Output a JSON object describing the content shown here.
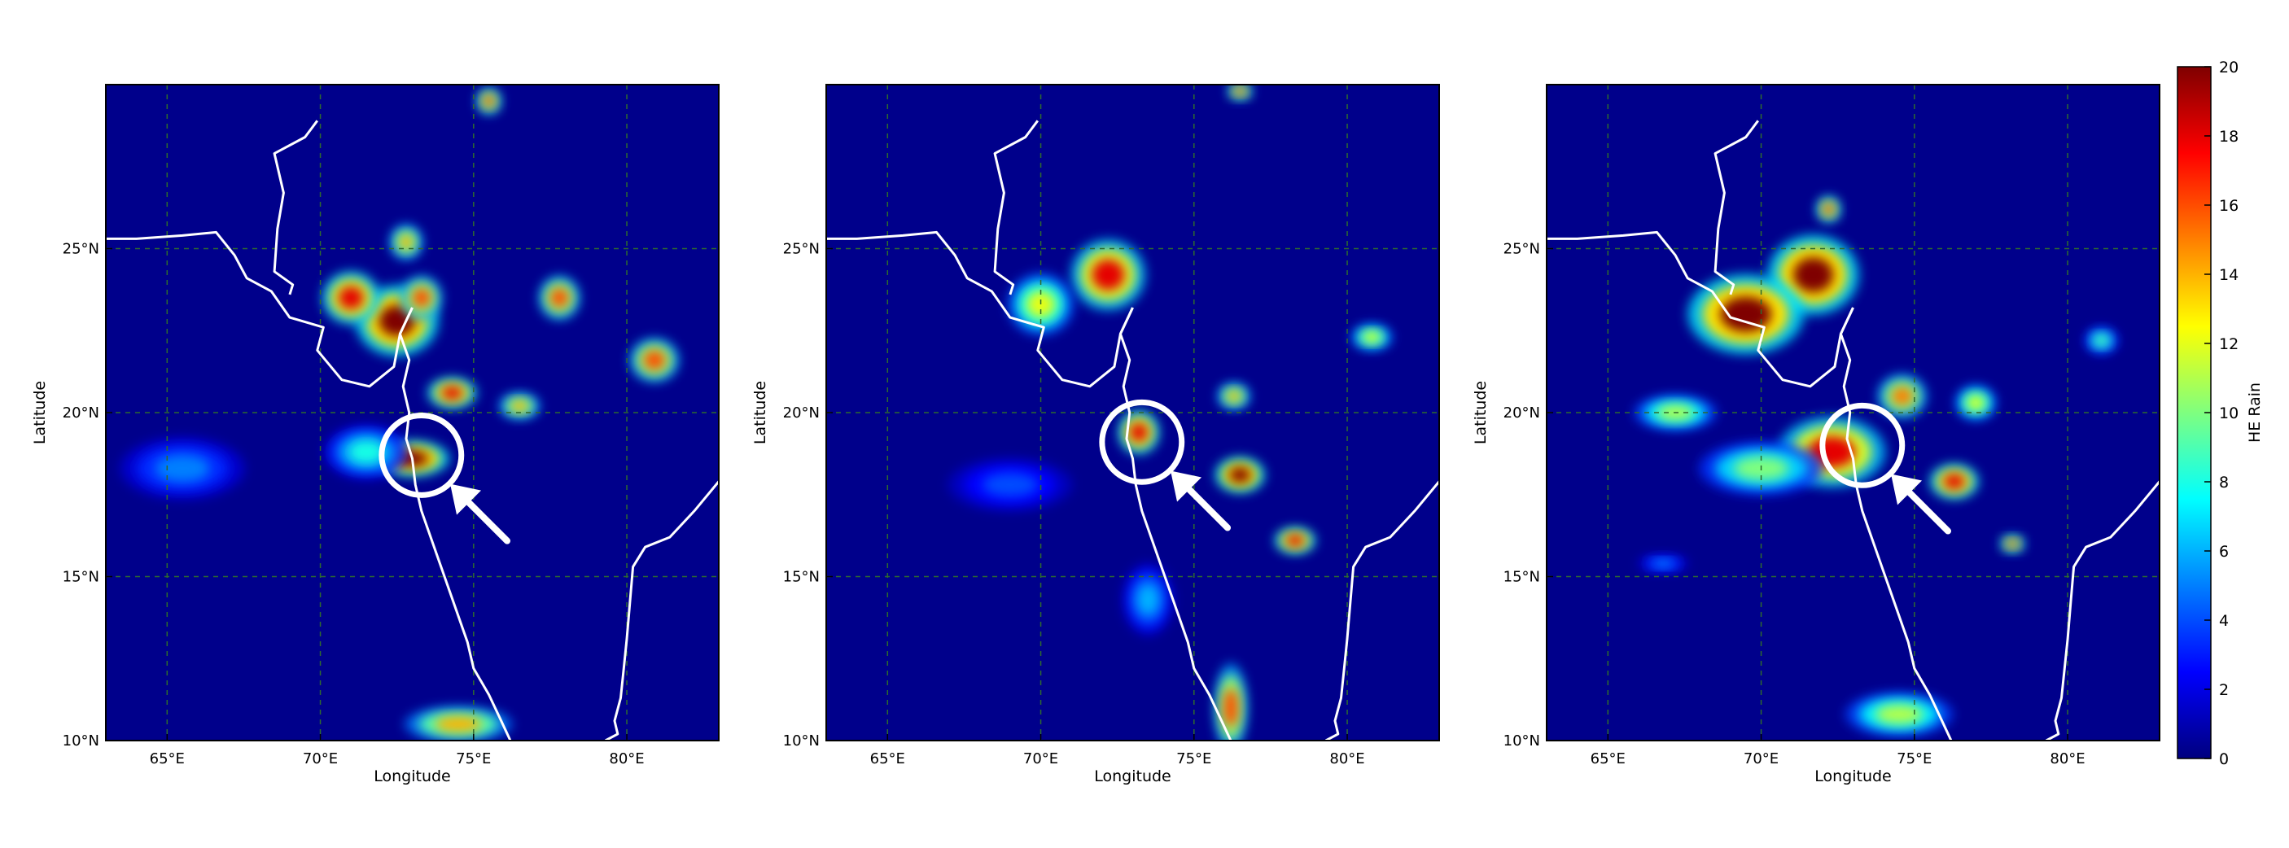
{
  "chart_data": [
    {
      "type": "heatmap",
      "xlabel": "Longitude",
      "ylabel": "Latitude",
      "xlim": [
        63,
        83
      ],
      "ylim": [
        10,
        30
      ],
      "xticks": [
        65,
        70,
        75,
        80
      ],
      "xtick_labels": [
        "65°E",
        "70°E",
        "75°E",
        "80°E"
      ],
      "yticks": [
        10,
        15,
        20,
        25
      ],
      "ytick_labels": [
        "10°N",
        "15°N",
        "20°N",
        "25°N"
      ],
      "grid": true,
      "annotation": {
        "shape": "circle-with-arrow",
        "center_lon": 73.3,
        "center_lat": 18.7,
        "radius_deg": 1.3
      },
      "rain_cells": [
        {
          "lon": 72.5,
          "lat": 22.8,
          "rx": 1.0,
          "ry": 0.8,
          "value": 20
        },
        {
          "lon": 71.0,
          "lat": 23.5,
          "rx": 0.7,
          "ry": 0.6,
          "value": 18
        },
        {
          "lon": 73.3,
          "lat": 23.5,
          "rx": 0.5,
          "ry": 0.5,
          "value": 16
        },
        {
          "lon": 73.0,
          "lat": 18.6,
          "rx": 0.9,
          "ry": 0.4,
          "value": 20
        },
        {
          "lon": 74.3,
          "lat": 20.6,
          "rx": 0.6,
          "ry": 0.35,
          "value": 18
        },
        {
          "lon": 77.8,
          "lat": 23.5,
          "rx": 0.5,
          "ry": 0.5,
          "value": 16
        },
        {
          "lon": 80.9,
          "lat": 21.6,
          "rx": 0.6,
          "ry": 0.5,
          "value": 16
        },
        {
          "lon": 76.5,
          "lat": 20.2,
          "rx": 0.5,
          "ry": 0.3,
          "value": 14
        },
        {
          "lon": 71.5,
          "lat": 18.8,
          "rx": 1.0,
          "ry": 0.6,
          "value": 8
        },
        {
          "lon": 65.5,
          "lat": 18.3,
          "rx": 1.5,
          "ry": 0.7,
          "value": 5
        },
        {
          "lon": 74.5,
          "lat": 10.5,
          "rx": 1.3,
          "ry": 0.4,
          "value": 14
        },
        {
          "lon": 72.8,
          "lat": 25.2,
          "rx": 0.4,
          "ry": 0.4,
          "value": 14
        },
        {
          "lon": 75.5,
          "lat": 29.5,
          "rx": 0.3,
          "ry": 0.3,
          "value": 16
        }
      ]
    },
    {
      "type": "heatmap",
      "xlabel": "Longitude",
      "ylabel": "Latitude",
      "xlim": [
        63,
        83
      ],
      "ylim": [
        10,
        30
      ],
      "xticks": [
        65,
        70,
        75,
        80
      ],
      "xtick_labels": [
        "65°E",
        "70°E",
        "75°E",
        "80°E"
      ],
      "yticks": [
        10,
        15,
        20,
        25
      ],
      "ytick_labels": [
        "10°N",
        "15°N",
        "20°N",
        "25°N"
      ],
      "grid": true,
      "annotation": {
        "shape": "circle-with-arrow",
        "center_lon": 73.3,
        "center_lat": 19.1,
        "radius_deg": 1.3
      },
      "rain_cells": [
        {
          "lon": 72.2,
          "lat": 24.2,
          "rx": 0.9,
          "ry": 0.8,
          "value": 18
        },
        {
          "lon": 70.0,
          "lat": 23.3,
          "rx": 0.8,
          "ry": 0.7,
          "value": 12
        },
        {
          "lon": 73.2,
          "lat": 19.4,
          "rx": 0.5,
          "ry": 0.5,
          "value": 18
        },
        {
          "lon": 76.5,
          "lat": 18.1,
          "rx": 0.6,
          "ry": 0.4,
          "value": 20
        },
        {
          "lon": 78.3,
          "lat": 16.1,
          "rx": 0.5,
          "ry": 0.3,
          "value": 18
        },
        {
          "lon": 76.2,
          "lat": 11.0,
          "rx": 0.4,
          "ry": 1.0,
          "value": 16
        },
        {
          "lon": 76.3,
          "lat": 20.5,
          "rx": 0.4,
          "ry": 0.3,
          "value": 14
        },
        {
          "lon": 80.8,
          "lat": 22.3,
          "rx": 0.5,
          "ry": 0.3,
          "value": 12
        },
        {
          "lon": 76.5,
          "lat": 29.8,
          "rx": 0.3,
          "ry": 0.2,
          "value": 16
        },
        {
          "lon": 69.0,
          "lat": 17.8,
          "rx": 1.5,
          "ry": 0.6,
          "value": 4
        },
        {
          "lon": 73.5,
          "lat": 14.3,
          "rx": 0.6,
          "ry": 0.8,
          "value": 6
        }
      ]
    },
    {
      "type": "heatmap",
      "xlabel": "Longitude",
      "ylabel": "Latitude",
      "xlim": [
        63,
        83
      ],
      "ylim": [
        10,
        30
      ],
      "xticks": [
        65,
        70,
        75,
        80
      ],
      "xtick_labels": [
        "65°E",
        "70°E",
        "75°E",
        "80°E"
      ],
      "yticks": [
        10,
        15,
        20,
        25
      ],
      "ytick_labels": [
        "10°N",
        "15°N",
        "20°N",
        "25°N"
      ],
      "grid": true,
      "annotation": {
        "shape": "circle-with-arrow",
        "center_lon": 73.3,
        "center_lat": 19.0,
        "radius_deg": 1.3
      },
      "rain_cells": [
        {
          "lon": 71.7,
          "lat": 24.2,
          "rx": 1.1,
          "ry": 0.9,
          "value": 20
        },
        {
          "lon": 69.5,
          "lat": 23.0,
          "rx": 1.4,
          "ry": 0.9,
          "value": 20
        },
        {
          "lon": 72.3,
          "lat": 18.8,
          "rx": 1.3,
          "ry": 0.8,
          "value": 18
        },
        {
          "lon": 70.0,
          "lat": 18.3,
          "rx": 1.5,
          "ry": 0.6,
          "value": 10
        },
        {
          "lon": 67.2,
          "lat": 20.0,
          "rx": 1.0,
          "ry": 0.4,
          "value": 11
        },
        {
          "lon": 74.6,
          "lat": 20.5,
          "rx": 0.6,
          "ry": 0.5,
          "value": 15
        },
        {
          "lon": 77.0,
          "lat": 20.3,
          "rx": 0.5,
          "ry": 0.4,
          "value": 12
        },
        {
          "lon": 76.3,
          "lat": 17.9,
          "rx": 0.6,
          "ry": 0.4,
          "value": 18
        },
        {
          "lon": 74.5,
          "lat": 10.8,
          "rx": 1.3,
          "ry": 0.5,
          "value": 11
        },
        {
          "lon": 78.2,
          "lat": 16.0,
          "rx": 0.3,
          "ry": 0.2,
          "value": 16
        },
        {
          "lon": 72.2,
          "lat": 26.2,
          "rx": 0.3,
          "ry": 0.3,
          "value": 16
        },
        {
          "lon": 81.1,
          "lat": 22.2,
          "rx": 0.4,
          "ry": 0.3,
          "value": 9
        },
        {
          "lon": 66.8,
          "lat": 15.4,
          "rx": 0.6,
          "ry": 0.2,
          "value": 5
        }
      ]
    },
    {
      "type": "colorbar",
      "label": "HE Rain",
      "vmin": 0,
      "vmax": 20,
      "ticks": [
        0,
        2,
        4,
        6,
        8,
        10,
        12,
        14,
        16,
        18,
        20
      ],
      "tick_labels": [
        "0",
        "2",
        "4",
        "6",
        "8",
        "10",
        "12",
        "14",
        "16",
        "18",
        "20"
      ],
      "colormap": "jet",
      "stops": [
        "#00007f",
        "#0000ff",
        "#007fff",
        "#00ffff",
        "#7fff7f",
        "#ffff00",
        "#ff7f00",
        "#ff0000",
        "#7f0000"
      ]
    }
  ],
  "colors": {
    "background_field": "#00008b",
    "coastline": "#ffffff",
    "gridline": "#2e6b2e",
    "annotation": "#ffffff"
  }
}
